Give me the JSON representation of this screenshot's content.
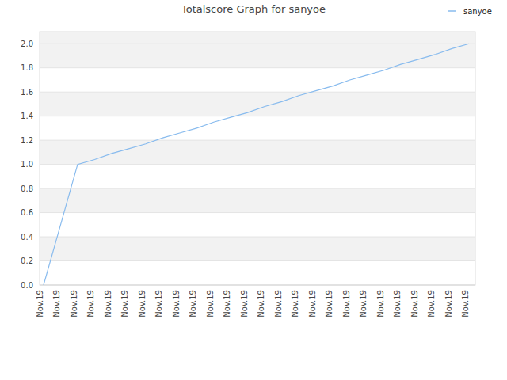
{
  "chart_data": {
    "type": "line",
    "title": "Totalscore Graph for sanyoe",
    "categories": [
      "Nov.19",
      "Nov.19",
      "Nov.19",
      "Nov.19",
      "Nov.19",
      "Nov.19",
      "Nov.19",
      "Nov.19",
      "Nov.19",
      "Nov.19",
      "Nov.19",
      "Nov.19",
      "Nov.19",
      "Nov.19",
      "Nov.19",
      "Nov.19",
      "Nov.19",
      "Nov.19",
      "Nov.19",
      "Nov.19",
      "Nov.19",
      "Nov.19",
      "Nov.19",
      "Nov.19",
      "Nov.19",
      "Nov.19"
    ],
    "series": [
      {
        "name": "sanyoe",
        "color": "#88bbee",
        "values": [
          0,
          0.5,
          1.0,
          1.04,
          1.09,
          1.13,
          1.17,
          1.22,
          1.26,
          1.3,
          1.35,
          1.39,
          1.43,
          1.48,
          1.52,
          1.57,
          1.61,
          1.65,
          1.7,
          1.74,
          1.78,
          1.83,
          1.87,
          1.91,
          1.96,
          2.0
        ]
      }
    ],
    "ylim": [
      0,
      2.1
    ],
    "yticks": [
      {
        "value": 0,
        "label": "0.0"
      },
      {
        "value": 0.2,
        "label": "0.2"
      },
      {
        "value": 0.4,
        "label": "0.4"
      },
      {
        "value": 0.6,
        "label": "0.6"
      },
      {
        "value": 0.8,
        "label": "0.8"
      },
      {
        "value": 1.0,
        "label": "1.0"
      },
      {
        "value": 1.2,
        "label": "1.2"
      },
      {
        "value": 1.4,
        "label": "1.4"
      },
      {
        "value": 1.6,
        "label": "1.6"
      },
      {
        "value": 1.8,
        "label": "1.8"
      },
      {
        "value": 2.0,
        "label": "2.0"
      }
    ],
    "grid": true,
    "legend": "top-right"
  }
}
